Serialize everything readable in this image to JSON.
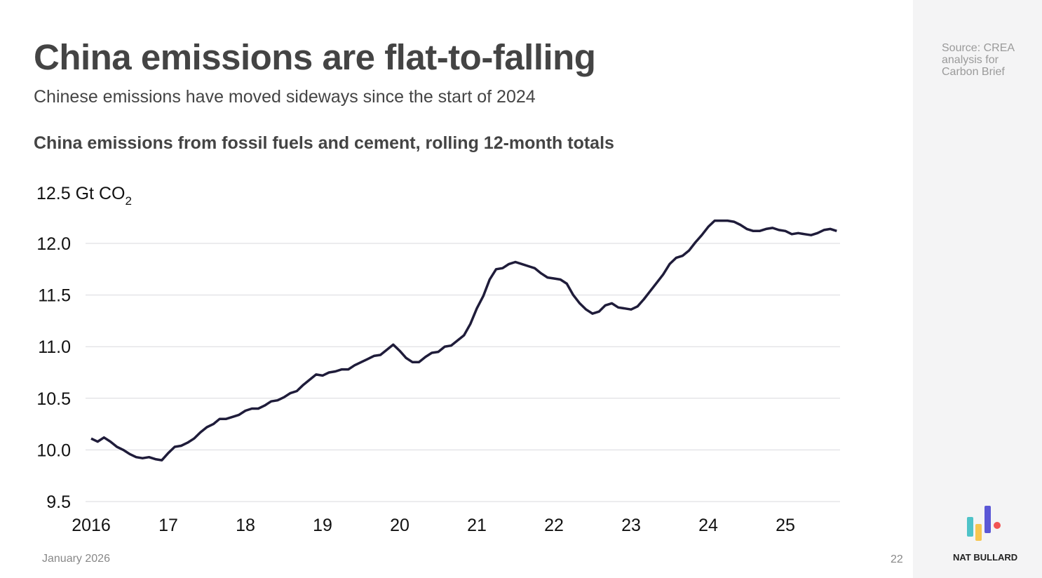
{
  "header": {
    "title": "China emissions are flat-to-falling",
    "subtitle": "Chinese emissions have moved sideways since the start of 2024"
  },
  "source": "Source: CREA analysis for Carbon Brief",
  "footer": {
    "date": "January 2026",
    "page": "22",
    "brand": "NAT BULLARD"
  },
  "colors": {
    "line": "#1f1c3a",
    "grid": "#d9d9de",
    "logo": [
      "#4fc3c8",
      "#f7c64f",
      "#5b57d6",
      "#f25454"
    ]
  },
  "chart_data": {
    "type": "line",
    "title": "China emissions from fossil fuels and cement, rolling 12-month totals",
    "ylabel": "Gt CO2",
    "ylabel_top": "12.5 Gt CO",
    "ylabel_sub": "2",
    "ylim": [
      9.5,
      12.5
    ],
    "yticks": [
      "12.0",
      "11.5",
      "11.0",
      "10.5",
      "10.0",
      "9.5"
    ],
    "ytick_values": [
      12.0,
      11.5,
      11.0,
      10.5,
      10.0,
      9.5
    ],
    "xticks": [
      "2016",
      "17",
      "18",
      "19",
      "20",
      "21",
      "22",
      "23",
      "24",
      "25"
    ],
    "xtick_values": [
      2016,
      2017,
      2018,
      2019,
      2020,
      2021,
      2022,
      2023,
      2024,
      2025
    ],
    "grid": true,
    "x_start": "2016-01",
    "x_step": "monthly",
    "series": [
      {
        "name": "China emissions",
        "values": [
          10.11,
          10.08,
          10.12,
          10.08,
          10.03,
          10.0,
          9.96,
          9.93,
          9.92,
          9.93,
          9.91,
          9.9,
          9.97,
          10.03,
          10.04,
          10.07,
          10.11,
          10.17,
          10.22,
          10.25,
          10.3,
          10.3,
          10.32,
          10.34,
          10.38,
          10.4,
          10.4,
          10.43,
          10.47,
          10.48,
          10.51,
          10.55,
          10.57,
          10.63,
          10.68,
          10.73,
          10.72,
          10.75,
          10.76,
          10.78,
          10.78,
          10.82,
          10.85,
          10.88,
          10.91,
          10.92,
          10.97,
          11.02,
          10.96,
          10.89,
          10.85,
          10.85,
          10.9,
          10.94,
          10.95,
          11.0,
          11.01,
          11.06,
          11.11,
          11.22,
          11.37,
          11.49,
          11.65,
          11.75,
          11.76,
          11.8,
          11.82,
          11.8,
          11.78,
          11.76,
          11.71,
          11.67,
          11.66,
          11.65,
          11.61,
          11.5,
          11.42,
          11.36,
          11.32,
          11.34,
          11.4,
          11.42,
          11.38,
          11.37,
          11.36,
          11.39,
          11.46,
          11.54,
          11.62,
          11.7,
          11.8,
          11.86,
          11.88,
          11.93,
          12.01,
          12.08,
          12.16,
          12.22,
          12.22,
          12.22,
          12.21,
          12.18,
          12.14,
          12.12,
          12.12,
          12.14,
          12.15,
          12.13,
          12.12,
          12.09,
          12.1,
          12.09,
          12.08,
          12.1,
          12.13,
          12.14,
          12.12
        ]
      }
    ]
  }
}
